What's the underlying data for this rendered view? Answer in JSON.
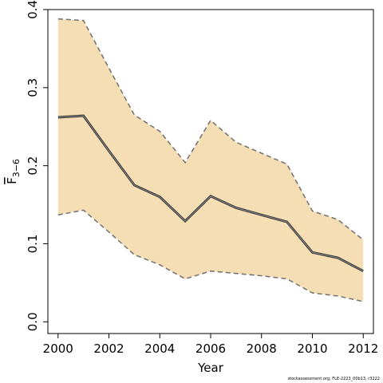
{
  "chart_data": {
    "type": "area",
    "title": "",
    "xlabel": "Year",
    "ylabel_main": "F",
    "ylabel_sub": "3−6",
    "x": [
      2000,
      2001,
      2002,
      2003,
      2004,
      2005,
      2006,
      2007,
      2008,
      2009,
      2010,
      2011,
      2012
    ],
    "series": [
      {
        "role": "estimate",
        "values": [
          0.262,
          0.264,
          0.219,
          0.175,
          0.16,
          0.129,
          0.161,
          0.146,
          0.137,
          0.128,
          0.089,
          0.082,
          0.065
        ]
      },
      {
        "role": "upper",
        "values": [
          0.388,
          0.386,
          0.325,
          0.265,
          0.244,
          0.204,
          0.258,
          0.23,
          0.216,
          0.202,
          0.142,
          0.131,
          0.105
        ]
      },
      {
        "role": "lower",
        "values": [
          0.137,
          0.143,
          0.115,
          0.086,
          0.073,
          0.055,
          0.065,
          0.062,
          0.059,
          0.055,
          0.037,
          0.033,
          0.026
        ]
      }
    ],
    "xlim": [
      1999.6,
      2012.4
    ],
    "ylim": [
      -0.015,
      0.4
    ],
    "xticks": [
      "2000",
      "2002",
      "2004",
      "2006",
      "2008",
      "2010",
      "2012"
    ],
    "yticks": [
      "0.0",
      "0.1",
      "0.2",
      "0.3",
      "0.4"
    ],
    "grid": false,
    "band_color": "#F5DEB3",
    "line_color": "#3a3a3a",
    "bound_color": "#777777"
  },
  "footer": "stockassessment.org, FLE-2223_00b13, r3222"
}
